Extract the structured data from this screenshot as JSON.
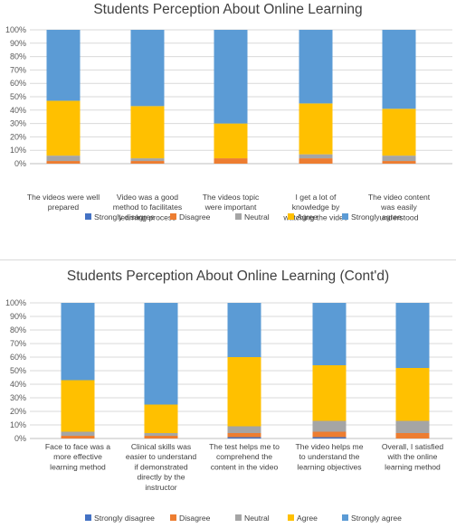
{
  "legend": [
    "Strongly disagree",
    "Disagree",
    "Neutral",
    "Agree",
    "Strongly agree"
  ],
  "colors": [
    "#4472c4",
    "#ed7d31",
    "#a5a5a5",
    "#ffc000",
    "#5b9bd5"
  ],
  "chart_data": [
    {
      "type": "bar",
      "stacked": true,
      "percent": true,
      "title": "Students Perception About Online Learning",
      "ylim": [
        0,
        100
      ],
      "yticks": [
        "0%",
        "10%",
        "20%",
        "30%",
        "40%",
        "50%",
        "60%",
        "70%",
        "80%",
        "90%",
        "100%"
      ],
      "legend_position": "bottom",
      "grid": true,
      "categories": [
        [
          "The videos were well",
          "prepared"
        ],
        [
          "Video was a good",
          "method to facilitates",
          "learning process"
        ],
        [
          "The videos topic",
          "were important"
        ],
        [
          "I get a lot of",
          "knowledge by",
          "watching the video"
        ],
        [
          "The video content",
          "was easily",
          "understood"
        ]
      ],
      "series": [
        {
          "name": "Strongly disagree",
          "values": [
            0,
            0,
            0,
            0,
            0
          ]
        },
        {
          "name": "Disagree",
          "values": [
            2,
            2,
            4,
            4,
            2
          ]
        },
        {
          "name": "Neutral",
          "values": [
            4,
            2,
            0,
            3,
            4
          ]
        },
        {
          "name": "Agree",
          "values": [
            41,
            39,
            26,
            38,
            35
          ]
        },
        {
          "name": "Strongly agree",
          "values": [
            53,
            57,
            70,
            55,
            59
          ]
        }
      ]
    },
    {
      "type": "bar",
      "stacked": true,
      "percent": true,
      "title": "Students Perception About Online Learning (Cont'd)",
      "ylim": [
        0,
        100
      ],
      "yticks": [
        "0%",
        "10%",
        "20%",
        "30%",
        "40%",
        "50%",
        "60%",
        "70%",
        "80%",
        "90%",
        "100%"
      ],
      "legend_position": "bottom",
      "grid": true,
      "categories": [
        [
          "Face to face was a",
          "more effective",
          "learning method"
        ],
        [
          "Clinical skills was",
          "easier to understand",
          "if demonstrated",
          "directly by the",
          "instructor"
        ],
        [
          "The test helps me to",
          "comprehend the",
          "content in the video"
        ],
        [
          "The video helps me",
          "to understand the",
          "learning objectives"
        ],
        [
          "Overall, I satisfied",
          "with the online",
          "learning method"
        ]
      ],
      "series": [
        {
          "name": "Strongly disagree",
          "values": [
            0,
            0,
            1,
            1,
            0
          ]
        },
        {
          "name": "Disagree",
          "values": [
            2,
            2,
            3,
            4,
            4
          ]
        },
        {
          "name": "Neutral",
          "values": [
            3,
            2,
            5,
            8,
            9
          ]
        },
        {
          "name": "Agree",
          "values": [
            38,
            21,
            51,
            41,
            39
          ]
        },
        {
          "name": "Strongly agree",
          "values": [
            57,
            75,
            40,
            46,
            48
          ]
        }
      ]
    }
  ]
}
